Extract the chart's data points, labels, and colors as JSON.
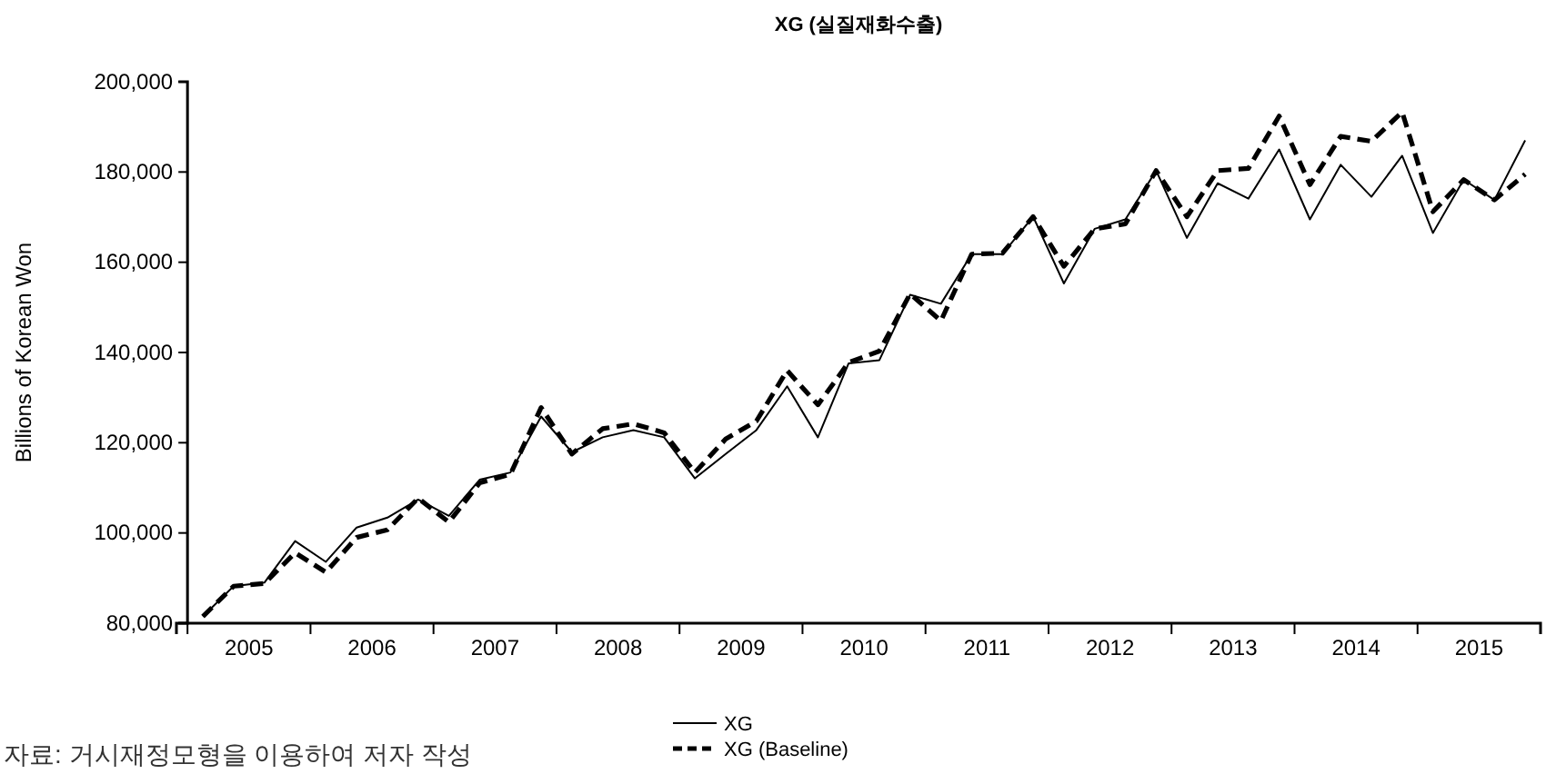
{
  "chart_data": {
    "type": "line",
    "title": "XG (실질재화수출)",
    "ylabel": "Billions of Korean Won",
    "annotations": [
      "자료: 거시재정모형을 이용하여 저자 작성"
    ],
    "x": [
      2004.625,
      2004.875,
      2005.125,
      2005.375,
      2005.625,
      2005.875,
      2006.125,
      2006.375,
      2006.625,
      2006.875,
      2007.125,
      2007.375,
      2007.625,
      2007.875,
      2008.125,
      2008.375,
      2008.625,
      2008.875,
      2009.125,
      2009.375,
      2009.625,
      2009.875,
      2010.125,
      2010.375,
      2010.625,
      2010.875,
      2011.125,
      2011.375,
      2011.625,
      2011.875,
      2012.125,
      2012.375,
      2012.625,
      2012.875,
      2013.125,
      2013.375,
      2013.625,
      2013.875,
      2014.125,
      2014.375,
      2014.625,
      2014.875,
      2015.125,
      2015.375
    ],
    "xlim": [
      2004.41,
      2015.5
    ],
    "xticks": [
      2005,
      2006,
      2007,
      2008,
      2009,
      2010,
      2011,
      2012,
      2013,
      2014,
      2015
    ],
    "ylim": [
      80000,
      200000
    ],
    "yticks": [
      {
        "value": 80000,
        "label": "80,000"
      },
      {
        "value": 100000,
        "label": "100,000"
      },
      {
        "value": 120000,
        "label": "120,000"
      },
      {
        "value": 140000,
        "label": "140,000"
      },
      {
        "value": 160000,
        "label": "160,000"
      },
      {
        "value": 180000,
        "label": "180,000"
      },
      {
        "value": 200000,
        "label": "200,000"
      }
    ],
    "legend": "bottom",
    "marker": "none",
    "series": [
      {
        "name": "XG",
        "color": "#000000",
        "line_style": "solid",
        "values": [
          81500,
          88200,
          89000,
          98200,
          93600,
          101200,
          103400,
          107400,
          103800,
          111800,
          113400,
          125800,
          117900,
          121200,
          122800,
          121200,
          112100,
          117500,
          122800,
          132500,
          121200,
          137600,
          138300,
          152800,
          150800,
          161800,
          161800,
          170100,
          155300,
          167400,
          169500,
          180300,
          165400,
          177500,
          174100,
          185000,
          169500,
          181600,
          174500,
          183600,
          166500,
          178300,
          173800,
          187000
        ]
      },
      {
        "name": "XG (Baseline)",
        "color": "#000000",
        "line_style": "dashed",
        "values": [
          81500,
          88200,
          88800,
          95600,
          91300,
          99000,
          100700,
          107700,
          102400,
          111100,
          113000,
          127800,
          117500,
          123100,
          124200,
          122200,
          113400,
          120800,
          124800,
          136000,
          128400,
          137800,
          140300,
          153000,
          147000,
          161800,
          162000,
          170100,
          159100,
          167400,
          168500,
          180300,
          170100,
          180300,
          180800,
          192400,
          177200,
          187900,
          186800,
          193300,
          171200,
          178300,
          173800,
          179500
        ]
      }
    ]
  }
}
